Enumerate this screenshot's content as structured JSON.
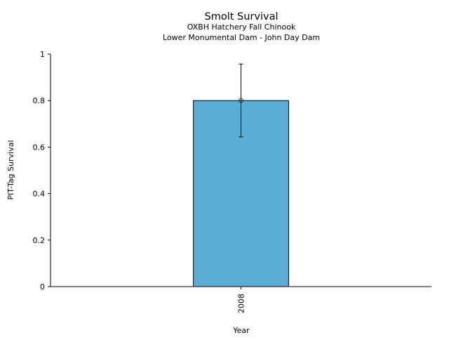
{
  "chart_data": {
    "type": "bar",
    "title": "Smolt Survival",
    "subtitle_lines": [
      "OXBH Hatchery Fall Chinook",
      "Lower Monumental Dam - John Day Dam"
    ],
    "xlabel": "Year",
    "ylabel": "PIT-Tag Survival",
    "categories": [
      "2008"
    ],
    "values": [
      0.8
    ],
    "error_upper": [
      0.957
    ],
    "error_lower": [
      0.644
    ],
    "ylim": [
      0,
      1
    ],
    "yticks": [
      "0",
      "0.2",
      "0.4",
      "0.6",
      "0.8",
      "1"
    ],
    "grid": false,
    "bar_color": "#5badd6"
  }
}
